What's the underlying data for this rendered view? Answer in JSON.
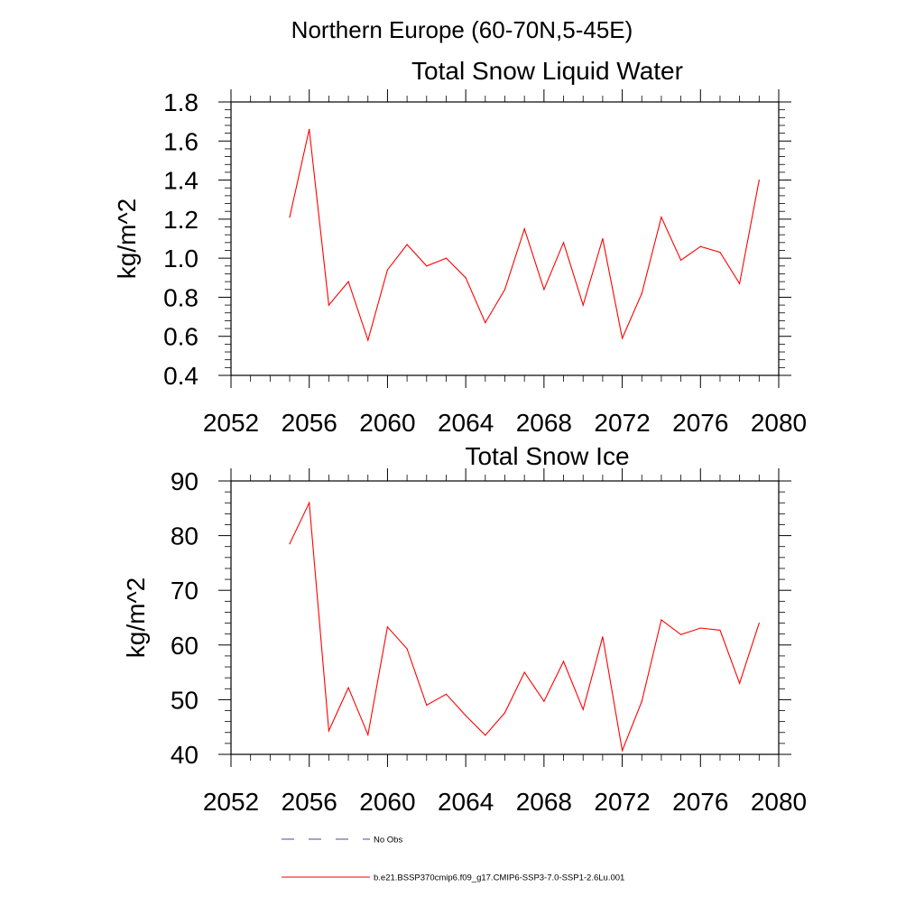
{
  "figure_title": "Northern Europe (60-70N,5-45E)",
  "colors": {
    "series": "#ff0000",
    "obs": "#4a4a9a",
    "axis": "#000000"
  },
  "legend": [
    {
      "label": "No Obs",
      "style": "dashed",
      "color": "#4a4a9a"
    },
    {
      "label": "b.e21.BSSP370cmip6.f09_g17.CMIP6-SSP3-7.0-SSP1-2.6Lu.001",
      "style": "solid",
      "color": "#ff0000"
    }
  ],
  "chart_data": [
    {
      "type": "line",
      "title": "Total Snow Liquid Water",
      "xlabel": "",
      "ylabel": "kg/m^2",
      "xlim": [
        2052,
        2080
      ],
      "ylim": [
        0.4,
        1.8
      ],
      "xticks": [
        2052,
        2056,
        2060,
        2064,
        2068,
        2072,
        2076,
        2080
      ],
      "yticks": [
        "0.4",
        "0.6",
        "0.8",
        "1.0",
        "1.2",
        "1.4",
        "1.6",
        "1.8"
      ],
      "x": [
        2055,
        2056,
        2057,
        2058,
        2059,
        2060,
        2061,
        2062,
        2063,
        2064,
        2065,
        2066,
        2067,
        2068,
        2069,
        2070,
        2071,
        2072,
        2073,
        2074,
        2075,
        2076,
        2077,
        2078,
        2079
      ],
      "series": [
        {
          "values": [
            1.21,
            1.66,
            0.76,
            0.88,
            0.58,
            0.94,
            1.07,
            0.96,
            1.0,
            0.9,
            0.67,
            0.84,
            1.15,
            0.84,
            1.08,
            0.76,
            1.1,
            0.59,
            0.82,
            1.21,
            0.99,
            1.06,
            1.03,
            0.87,
            1.4
          ]
        }
      ]
    },
    {
      "type": "line",
      "title": "Total Snow Ice",
      "xlabel": "",
      "ylabel": "kg/m^2",
      "xlim": [
        2052,
        2080
      ],
      "ylim": [
        40,
        90
      ],
      "xticks": [
        2052,
        2056,
        2060,
        2064,
        2068,
        2072,
        2076,
        2080
      ],
      "yticks": [
        "40",
        "50",
        "60",
        "70",
        "80",
        "90"
      ],
      "x": [
        2055,
        2056,
        2057,
        2058,
        2059,
        2060,
        2061,
        2062,
        2063,
        2064,
        2065,
        2066,
        2067,
        2068,
        2069,
        2070,
        2071,
        2072,
        2073,
        2074,
        2075,
        2076,
        2077,
        2078,
        2079
      ],
      "series": [
        {
          "values": [
            78.5,
            86.0,
            44.3,
            52.2,
            43.6,
            63.3,
            59.3,
            49.0,
            51.0,
            47.1,
            43.5,
            47.6,
            55.0,
            49.7,
            57.0,
            48.2,
            61.5,
            40.7,
            49.7,
            64.6,
            61.9,
            63.1,
            62.7,
            53.0,
            64.0
          ]
        }
      ]
    }
  ]
}
